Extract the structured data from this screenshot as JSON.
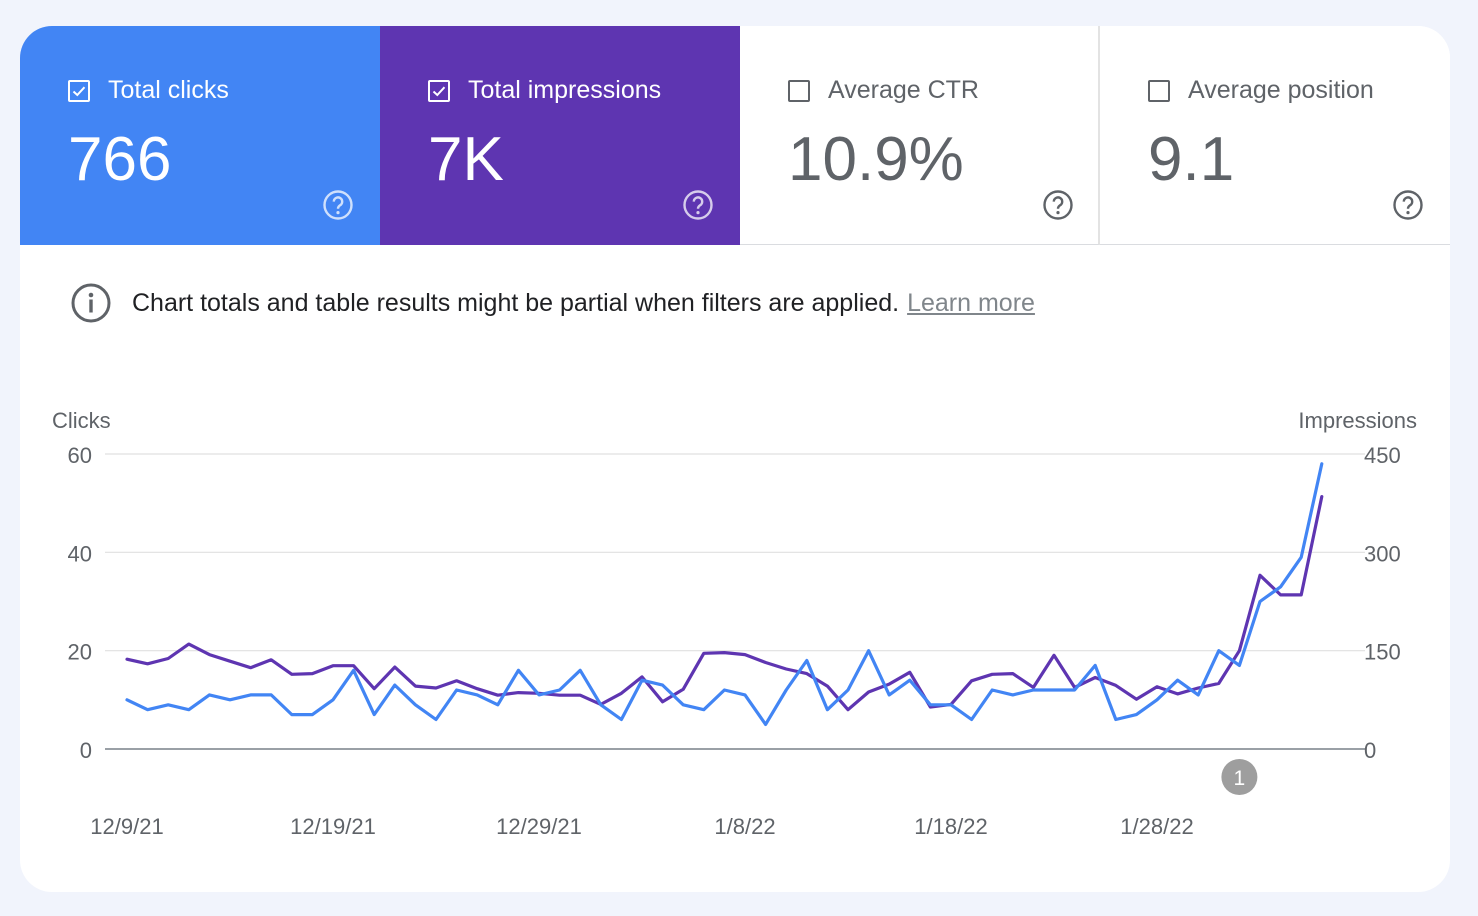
{
  "metrics": [
    {
      "label": "Total clicks",
      "value": "766",
      "checked": true,
      "color": "#4285f4"
    },
    {
      "label": "Total impressions",
      "value": "7K",
      "checked": true,
      "color": "#5e35b1"
    },
    {
      "label": "Average CTR",
      "value": "10.9%",
      "checked": false
    },
    {
      "label": "Average position",
      "value": "9.1",
      "checked": false
    }
  ],
  "icons": {
    "checkbox": "checkbox-icon",
    "help": "help-circle-icon",
    "info": "info-circle-icon"
  },
  "notice": {
    "text": "Chart totals and table results might be partial when filters are applied.",
    "link": "Learn more"
  },
  "chart_data": {
    "type": "line",
    "xlabel": "",
    "ylabel_left": "Clicks",
    "ylabel_right": "Impressions",
    "x_ticks": [
      "12/9/21",
      "12/19/21",
      "12/29/21",
      "1/8/22",
      "1/18/22",
      "1/28/22"
    ],
    "y_left_ticks": [
      "0",
      "20",
      "40",
      "60"
    ],
    "y_right_ticks": [
      "0",
      "150",
      "300",
      "450"
    ],
    "ylim_left": [
      0,
      60
    ],
    "ylim_right": [
      0,
      450
    ],
    "x_start": "2021-12-09",
    "grid": true,
    "annotation": {
      "label": "1",
      "date": "2022-02-01"
    },
    "series": [
      {
        "name": "Clicks",
        "axis": "left",
        "color": "#4285f4",
        "values": [
          10,
          8,
          9,
          8,
          11,
          10,
          11,
          11,
          7,
          7,
          10,
          16,
          7,
          13,
          9,
          6,
          12,
          11,
          9,
          16,
          11,
          12,
          16,
          9,
          6,
          14,
          13,
          9,
          8,
          12,
          11,
          5,
          12,
          18,
          8,
          12,
          20,
          11,
          14,
          9,
          9,
          6,
          12,
          11,
          12,
          12,
          12,
          17,
          6,
          7,
          10,
          14,
          11,
          20,
          17,
          30,
          33,
          39,
          58
        ]
      },
      {
        "name": "Impressions",
        "axis": "right",
        "color": "#5e35b1",
        "values": [
          137,
          130,
          138,
          160,
          144,
          134,
          124,
          136,
          114,
          115,
          127,
          127,
          92,
          125,
          96,
          93,
          104,
          92,
          82,
          86,
          85,
          82,
          82,
          68,
          85,
          110,
          72,
          91,
          146,
          147,
          144,
          132,
          122,
          115,
          96,
          60,
          87,
          99,
          117,
          64,
          68,
          104,
          114,
          115,
          94,
          143,
          94,
          109,
          97,
          76,
          95,
          84,
          93,
          100,
          150,
          265,
          235,
          235,
          385
        ]
      }
    ]
  }
}
